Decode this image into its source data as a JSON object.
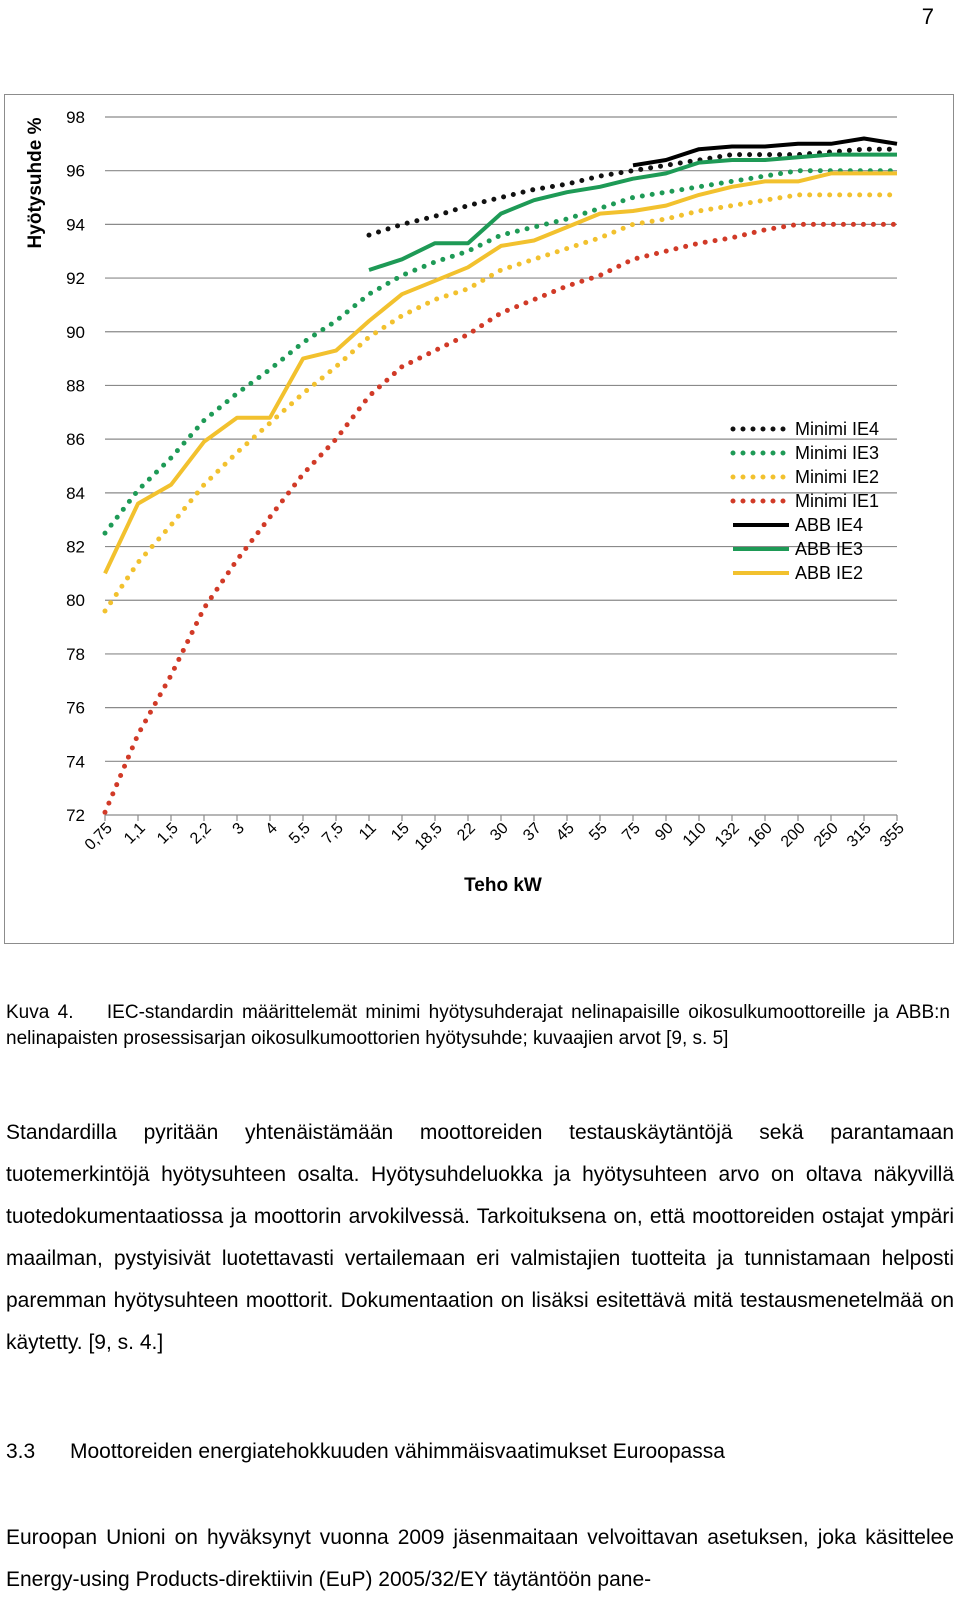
{
  "page_number": "7",
  "chart_data": {
    "type": "line",
    "ylabel": "Hyötysuhde %",
    "xlabel": "Teho kW",
    "ylim": [
      72,
      98
    ],
    "yticks": [
      72,
      74,
      76,
      78,
      80,
      82,
      84,
      86,
      88,
      90,
      92,
      94,
      96,
      98
    ],
    "categories": [
      "0,75",
      "1,1",
      "1,5",
      "2,2",
      "3",
      "4",
      "5,5",
      "7,5",
      "11",
      "15",
      "18,5",
      "22",
      "30",
      "37",
      "45",
      "55",
      "75",
      "90",
      "110",
      "132",
      "160",
      "200",
      "250",
      "315",
      "355"
    ],
    "grid": "horizontal",
    "legend_position": "right",
    "series": [
      {
        "name": "Minimi IE4",
        "style": "dotted",
        "color": "#111111",
        "values": [
          null,
          null,
          null,
          null,
          null,
          null,
          null,
          null,
          93.6,
          94.0,
          94.3,
          94.7,
          95.0,
          95.3,
          95.5,
          95.8,
          96.0,
          96.2,
          96.4,
          96.6,
          96.6,
          96.6,
          96.7,
          96.8,
          96.8
        ]
      },
      {
        "name": "Minimi IE3",
        "style": "dotted",
        "color": "#1e9a56",
        "values": [
          82.5,
          84.1,
          85.3,
          86.7,
          87.7,
          88.6,
          89.6,
          90.4,
          91.4,
          92.1,
          92.6,
          93.0,
          93.6,
          93.9,
          94.2,
          94.6,
          95.0,
          95.2,
          95.4,
          95.6,
          95.8,
          96.0,
          96.0,
          96.0,
          96.0
        ]
      },
      {
        "name": "Minimi IE2",
        "style": "dotted",
        "color": "#f2c12e",
        "values": [
          79.6,
          81.4,
          82.8,
          84.3,
          85.5,
          86.6,
          87.7,
          88.7,
          89.8,
          90.6,
          91.2,
          91.6,
          92.3,
          92.7,
          93.1,
          93.5,
          94.0,
          94.2,
          94.5,
          94.7,
          94.9,
          95.1,
          95.1,
          95.1,
          95.1
        ]
      },
      {
        "name": "Minimi IE1",
        "style": "dotted",
        "color": "#d13a27",
        "values": [
          72.1,
          75.0,
          77.2,
          79.7,
          81.5,
          83.1,
          84.7,
          86.0,
          87.6,
          88.7,
          89.3,
          89.9,
          90.7,
          91.2,
          91.7,
          92.1,
          92.7,
          93.0,
          93.3,
          93.5,
          93.8,
          94.0,
          94.0,
          94.0,
          94.0
        ]
      },
      {
        "name": "ABB IE4",
        "style": "solid",
        "color": "#000000",
        "values": [
          null,
          null,
          null,
          null,
          null,
          null,
          null,
          null,
          null,
          null,
          null,
          null,
          null,
          null,
          null,
          null,
          96.2,
          96.4,
          96.8,
          96.9,
          96.9,
          97.0,
          97.0,
          97.2,
          97.0
        ]
      },
      {
        "name": "ABB IE3",
        "style": "solid",
        "color": "#1e9a56",
        "values": [
          null,
          null,
          null,
          null,
          null,
          null,
          null,
          null,
          92.3,
          92.7,
          93.3,
          93.3,
          94.4,
          94.9,
          95.2,
          95.4,
          95.7,
          95.9,
          96.3,
          96.4,
          96.4,
          96.5,
          96.6,
          96.6,
          96.6
        ]
      },
      {
        "name": "ABB IE2",
        "style": "solid",
        "color": "#f2c12e",
        "values": [
          81.0,
          83.6,
          84.3,
          85.9,
          86.8,
          86.8,
          89.0,
          89.3,
          90.4,
          91.4,
          91.9,
          92.4,
          93.2,
          93.4,
          93.9,
          94.4,
          94.5,
          94.7,
          95.1,
          95.4,
          95.6,
          95.6,
          95.9,
          95.9,
          95.9
        ]
      }
    ]
  },
  "caption": {
    "label": "Kuva 4.",
    "text": "IEC-standardin määrittelemät minimi hyötysuhderajat nelinapaisille oikosulkumoottoreille ja ABB:n nelinapaisten prosessisarjan oikosulkumoottorien hyötysuhde; kuvaajien arvot [9, s. 5]"
  },
  "paragraph1": "Standardilla pyritään yhtenäistämään moottoreiden testauskäytäntöjä sekä parantamaan tuotemerkintöjä hyötysuhteen osalta. Hyötysuhdeluokka ja hyötysuhteen arvo on oltava näkyvillä tuotedokumentaatiossa ja moottorin arvokilvessä. Tarkoituksena on, että moottoreiden ostajat ympäri maailman, pystyisivät luotettavasti vertailemaan eri valmistajien tuotteita ja tunnistamaan helposti paremman hyötysuhteen moottorit. Dokumentaation on lisäksi esitettävä mitä testausmenetelmää on käytetty. [9, s. 4.]",
  "heading": {
    "number": "3.3",
    "title": "Moottoreiden energiatehokkuuden vähimmäisvaatimukset Euroopassa"
  },
  "paragraph2": "Euroopan Unioni on hyväksynyt vuonna 2009 jäsenmaitaan velvoittavan asetuksen, joka käsittelee Energy-using Products-direktiivin (EuP) 2005/32/EY täytäntöön pane-"
}
